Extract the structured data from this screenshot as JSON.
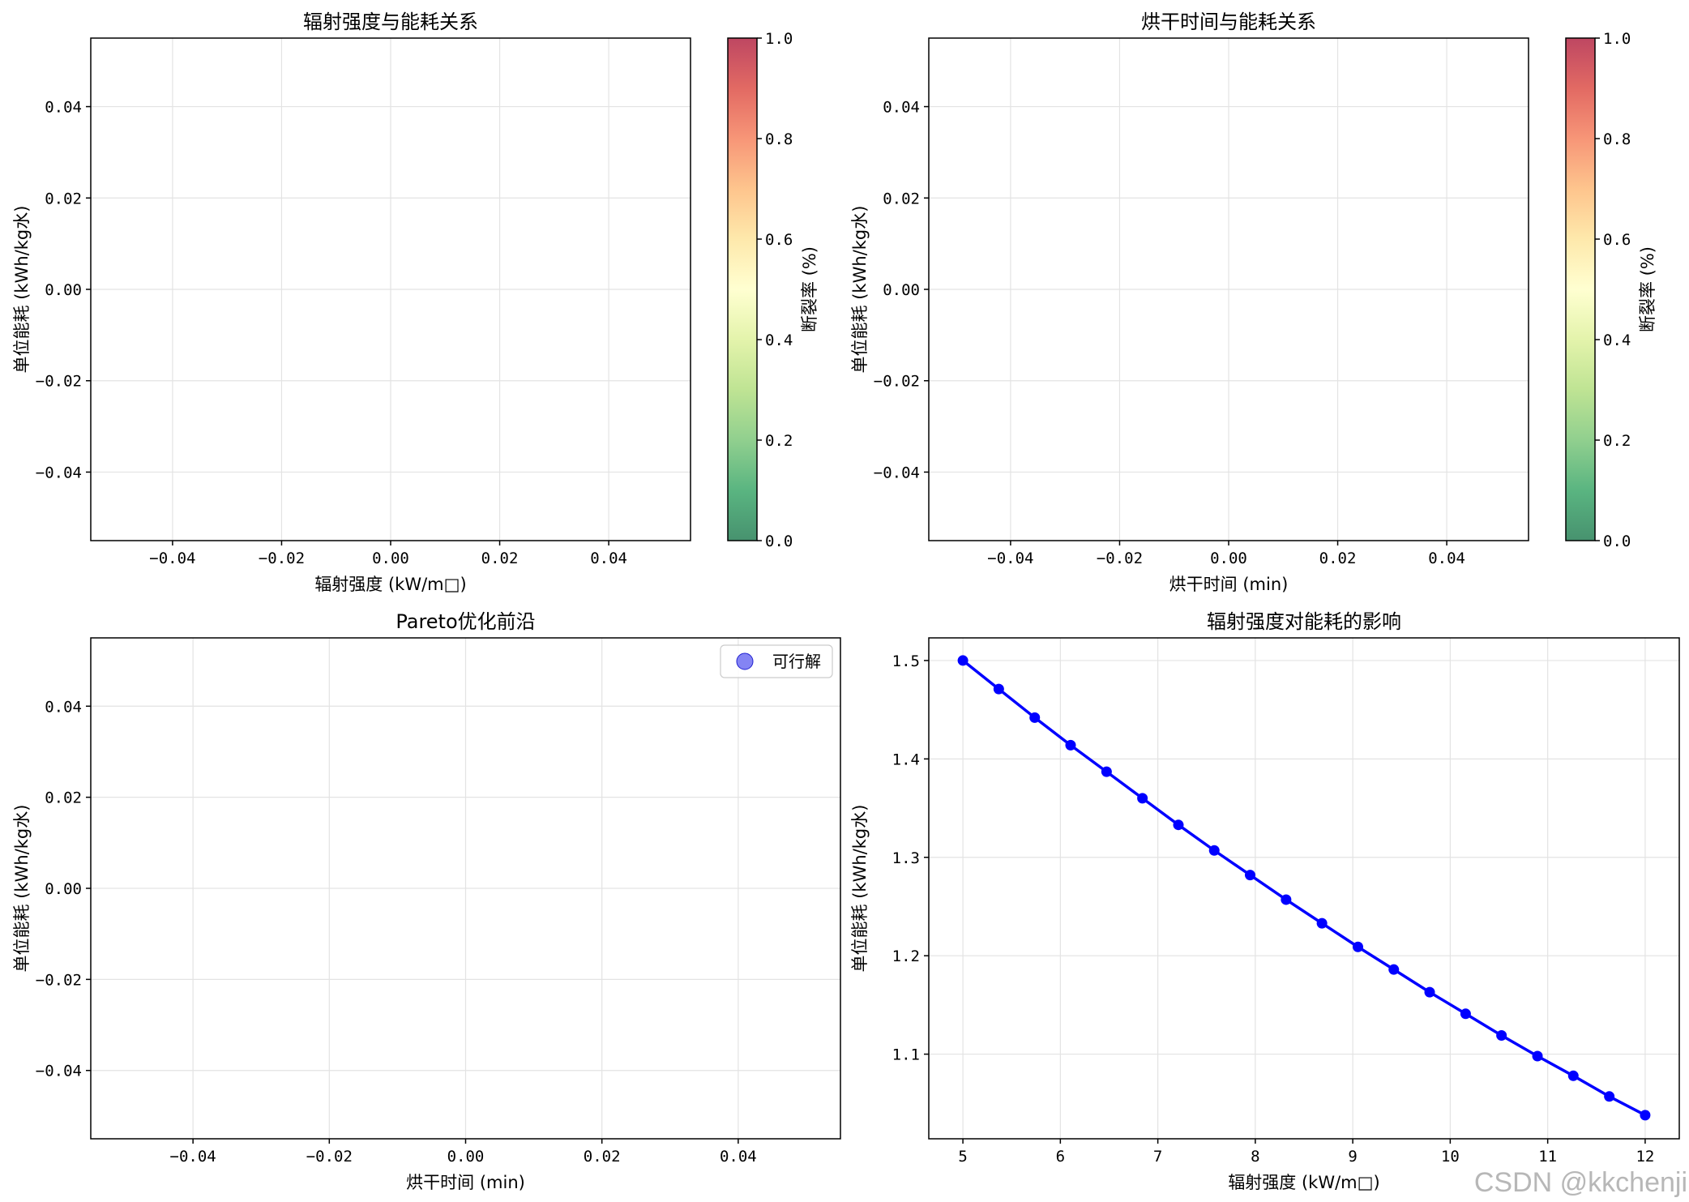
{
  "chart_data": [
    {
      "id": "ax1",
      "type": "scatter",
      "title": "辐射强度与能耗关系",
      "xlabel": "辐射强度 (kW/m□)",
      "ylabel": "单位能耗 (kWh/kg水)",
      "xlim": [
        -0.055,
        0.055
      ],
      "ylim": [
        -0.055,
        0.055
      ],
      "xticks": [
        -0.04,
        -0.02,
        0.0,
        0.02,
        0.04
      ],
      "xtick_labels": [
        "−0.04",
        "−0.02",
        "0.00",
        "0.02",
        "0.04"
      ],
      "yticks": [
        -0.04,
        -0.02,
        0.0,
        0.02,
        0.04
      ],
      "ytick_labels": [
        "−0.04",
        "−0.02",
        "0.00",
        "0.02",
        "0.04"
      ],
      "grid": true,
      "series": [],
      "colorbar": {
        "label": "断裂率 (%)",
        "range": [
          0,
          1
        ],
        "ticks": [
          0.0,
          0.2,
          0.4,
          0.6,
          0.8,
          1.0
        ],
        "tick_labels": [
          "0.0",
          "0.2",
          "0.4",
          "0.6",
          "0.8",
          "1.0"
        ],
        "colormap": "RdYlGn_r"
      }
    },
    {
      "id": "ax2",
      "type": "scatter",
      "title": "烘干时间与能耗关系",
      "xlabel": "烘干时间 (min)",
      "ylabel": "单位能耗 (kWh/kg水)",
      "xlim": [
        -0.055,
        0.055
      ],
      "ylim": [
        -0.055,
        0.055
      ],
      "xticks": [
        -0.04,
        -0.02,
        0.0,
        0.02,
        0.04
      ],
      "xtick_labels": [
        "−0.04",
        "−0.02",
        "0.00",
        "0.02",
        "0.04"
      ],
      "yticks": [
        -0.04,
        -0.02,
        0.0,
        0.02,
        0.04
      ],
      "ytick_labels": [
        "−0.04",
        "−0.02",
        "0.00",
        "0.02",
        "0.04"
      ],
      "grid": true,
      "series": [],
      "colorbar": {
        "label": "断裂率 (%)",
        "range": [
          0,
          1
        ],
        "ticks": [
          0.0,
          0.2,
          0.4,
          0.6,
          0.8,
          1.0
        ],
        "tick_labels": [
          "0.0",
          "0.2",
          "0.4",
          "0.6",
          "0.8",
          "1.0"
        ],
        "colormap": "RdYlGn_r"
      }
    },
    {
      "id": "ax3",
      "type": "scatter",
      "title": "Pareto优化前沿",
      "xlabel": "烘干时间 (min)",
      "ylabel": "单位能耗 (kWh/kg水)",
      "xlim": [
        -0.055,
        0.055
      ],
      "ylim": [
        -0.055,
        0.055
      ],
      "xticks": [
        -0.04,
        -0.02,
        0.0,
        0.02,
        0.04
      ],
      "xtick_labels": [
        "−0.04",
        "−0.02",
        "0.00",
        "0.02",
        "0.04"
      ],
      "yticks": [
        -0.04,
        -0.02,
        0.0,
        0.02,
        0.04
      ],
      "ytick_labels": [
        "−0.04",
        "−0.02",
        "0.00",
        "0.02",
        "0.04"
      ],
      "grid": true,
      "series": [],
      "legend": {
        "location": "upper-right",
        "entries": [
          {
            "label": "可行解",
            "color": "#5b5bf0"
          }
        ]
      }
    },
    {
      "id": "ax4",
      "type": "line",
      "title": "辐射强度对能耗的影响",
      "xlabel": "辐射强度 (kW/m□)",
      "ylabel": "单位能耗 (kWh/kg水)",
      "xlim": [
        4.65,
        12.35
      ],
      "ylim": [
        1.014,
        1.523
      ],
      "xticks": [
        5,
        6,
        7,
        8,
        9,
        10,
        11,
        12
      ],
      "xtick_labels": [
        "5",
        "6",
        "7",
        "8",
        "9",
        "10",
        "11",
        "12"
      ],
      "yticks": [
        1.1,
        1.2,
        1.3,
        1.4,
        1.5
      ],
      "ytick_labels": [
        "1.1",
        "1.2",
        "1.3",
        "1.4",
        "1.5"
      ],
      "grid": true,
      "series": [
        {
          "color": "#0000ff",
          "marker": "circle",
          "x": [
            5.0,
            5.368,
            5.737,
            6.105,
            6.474,
            6.842,
            7.211,
            7.579,
            7.947,
            8.316,
            8.684,
            9.053,
            9.421,
            9.789,
            10.158,
            10.526,
            10.895,
            11.263,
            11.632,
            12.0
          ],
          "y": [
            1.5,
            1.471,
            1.442,
            1.414,
            1.387,
            1.36,
            1.333,
            1.307,
            1.282,
            1.257,
            1.233,
            1.209,
            1.186,
            1.163,
            1.141,
            1.119,
            1.098,
            1.078,
            1.057,
            1.038
          ]
        }
      ]
    }
  ],
  "watermark": "CSDN @kkchenji"
}
